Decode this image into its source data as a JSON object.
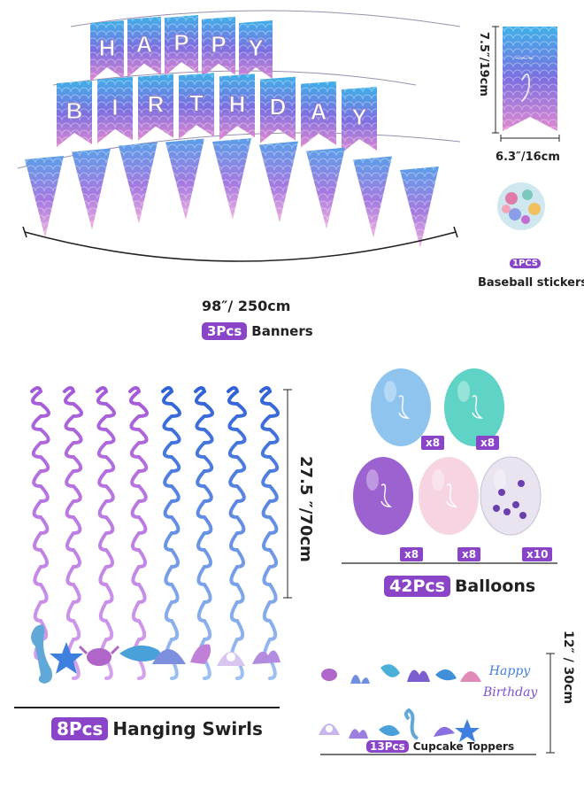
{
  "banner": {
    "happy_letters": [
      "H",
      "A",
      "P",
      "P",
      "Y"
    ],
    "birthday_letters": [
      "B",
      "I",
      "R",
      "T",
      "H",
      "D",
      "A",
      "Y"
    ],
    "size_label": "98″/ 250cm",
    "count": "3Pcs",
    "name": "Banners"
  },
  "single_flag": {
    "height_label": "7.5″/19cm",
    "width_label": "6.3″/16cm"
  },
  "sticker": {
    "count": "1PCS",
    "name": "Baseball stickers"
  },
  "swirls": {
    "size_label": "27.5 ″/70cm",
    "count": "8Pcs",
    "name": "Hanging Swirls"
  },
  "balloons": {
    "count": "42Pcs",
    "name": "Balloons",
    "items": [
      {
        "color": "#8ec4ee",
        "qty": "x8"
      },
      {
        "color": "#5fd4c6",
        "qty": "x8"
      },
      {
        "color": "#9b62d0",
        "qty": "x8"
      },
      {
        "color": "#f6d4e2",
        "qty": "x8"
      },
      {
        "color": "#e9e4ef",
        "qty": "x10"
      }
    ]
  },
  "toppers": {
    "size_label": "12″ / 30cm",
    "count": "13Pcs",
    "name": "Cupcake Toppers",
    "birthday_script": [
      "Happy",
      "Birthday"
    ]
  },
  "colors": {
    "accent": "#8a44c8",
    "pink": "#e06fb8",
    "blue": "#4a7fe0",
    "purple": "#7b4fd6"
  }
}
